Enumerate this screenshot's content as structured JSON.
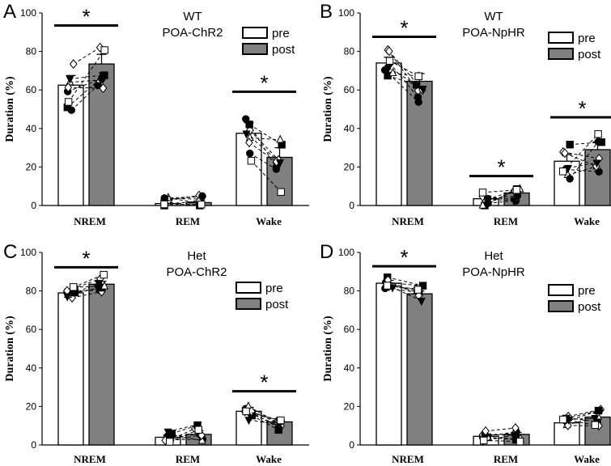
{
  "colors": {
    "pre_fill": "#ffffff",
    "post_fill": "#808080",
    "edge": "#000000"
  },
  "chart_data": [
    {
      "panel": "A",
      "type": "bar",
      "title": [
        "WT",
        "POA-ChR2"
      ],
      "ylabel": "Duration (%)",
      "ylim": [
        0,
        100
      ],
      "yticks": [
        "0",
        "20",
        "40",
        "60",
        "80",
        "100"
      ],
      "categories": [
        "NREM",
        "REM",
        "Wake"
      ],
      "legend": [
        "pre",
        "post"
      ],
      "series": [
        {
          "name": "pre",
          "values": [
            62.5,
            1,
            37.5
          ],
          "errors": [
            5,
            0.5,
            5.5
          ]
        },
        {
          "name": "post",
          "values": [
            73.5,
            1.5,
            25
          ],
          "errors": [
            5,
            0.8,
            5
          ]
        }
      ],
      "significance": [
        "NREM",
        "Wake"
      ]
    },
    {
      "panel": "B",
      "type": "bar",
      "title": [
        "WT",
        "POA-NpHR"
      ],
      "ylabel": "Duration (%)",
      "ylim": [
        0,
        100
      ],
      "yticks": [
        "0",
        "20",
        "40",
        "60",
        "80",
        "100"
      ],
      "categories": [
        "NREM",
        "REM",
        "Wake"
      ],
      "legend": [
        "pre",
        "post"
      ],
      "series": [
        {
          "name": "pre",
          "values": [
            74,
            3.5,
            23
          ],
          "errors": [
            3,
            1.5,
            3.5
          ]
        },
        {
          "name": "post",
          "values": [
            64.5,
            6.5,
            29
          ],
          "errors": [
            4,
            1.5,
            4
          ]
        }
      ],
      "significance": [
        "NREM",
        "REM",
        "Wake"
      ]
    },
    {
      "panel": "C",
      "type": "bar",
      "title": [
        "Het",
        "POA-ChR2"
      ],
      "ylabel": "Duration (%)",
      "ylim": [
        0,
        100
      ],
      "yticks": [
        "0",
        "20",
        "40",
        "60",
        "80",
        "100"
      ],
      "categories": [
        "NREM",
        "REM",
        "Wake"
      ],
      "legend": [
        "pre",
        "post"
      ],
      "series": [
        {
          "name": "pre",
          "values": [
            79,
            4,
            17.5
          ],
          "errors": [
            1.5,
            1,
            2
          ]
        },
        {
          "name": "post",
          "values": [
            83.5,
            5.5,
            12
          ],
          "errors": [
            1.5,
            2,
            1.5
          ]
        }
      ],
      "significance": [
        "NREM",
        "Wake"
      ]
    },
    {
      "panel": "D",
      "type": "bar",
      "title": [
        "Het",
        "POA-NpHR"
      ],
      "ylabel": "Duration (%)",
      "ylim": [
        0,
        100
      ],
      "yticks": [
        "0",
        "20",
        "40",
        "60",
        "80",
        "100"
      ],
      "categories": [
        "NREM",
        "REM",
        "Wake"
      ],
      "legend": [
        "pre",
        "post"
      ],
      "series": [
        {
          "name": "pre",
          "values": [
            84,
            4.5,
            11.5
          ],
          "errors": [
            1.5,
            1,
            1.5
          ]
        },
        {
          "name": "post",
          "values": [
            78.5,
            5.5,
            14.5
          ],
          "errors": [
            1.5,
            1,
            2
          ]
        }
      ],
      "significance": [
        "NREM"
      ]
    }
  ]
}
